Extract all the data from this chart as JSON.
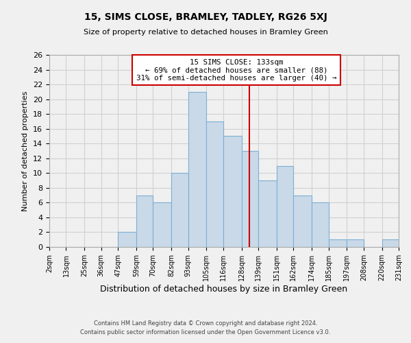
{
  "title": "15, SIMS CLOSE, BRAMLEY, TADLEY, RG26 5XJ",
  "subtitle": "Size of property relative to detached houses in Bramley Green",
  "xlabel": "Distribution of detached houses by size in Bramley Green",
  "ylabel": "Number of detached properties",
  "bin_labels": [
    "2sqm",
    "13sqm",
    "25sqm",
    "36sqm",
    "47sqm",
    "59sqm",
    "70sqm",
    "82sqm",
    "93sqm",
    "105sqm",
    "116sqm",
    "128sqm",
    "139sqm",
    "151sqm",
    "162sqm",
    "174sqm",
    "185sqm",
    "197sqm",
    "208sqm",
    "220sqm",
    "231sqm"
  ],
  "bar_heights": [
    0,
    0,
    0,
    0,
    2,
    7,
    6,
    10,
    21,
    17,
    15,
    13,
    9,
    11,
    7,
    6,
    1,
    1,
    0,
    1
  ],
  "bin_edges": [
    2,
    13,
    25,
    36,
    47,
    59,
    70,
    82,
    93,
    105,
    116,
    128,
    139,
    151,
    162,
    174,
    185,
    197,
    208,
    220,
    231
  ],
  "bar_color": "#c9d9e8",
  "bar_edge_color": "#7bafd4",
  "vline_x": 133,
  "vline_color": "#cc0000",
  "annotation_title": "15 SIMS CLOSE: 133sqm",
  "annotation_line1": "← 69% of detached houses are smaller (88)",
  "annotation_line2": "31% of semi-detached houses are larger (40) →",
  "annotation_box_color": "#ffffff",
  "annotation_box_edge": "#cc0000",
  "ylim": [
    0,
    26
  ],
  "yticks": [
    0,
    2,
    4,
    6,
    8,
    10,
    12,
    14,
    16,
    18,
    20,
    22,
    24,
    26
  ],
  "footer1": "Contains HM Land Registry data © Crown copyright and database right 2024.",
  "footer2": "Contains public sector information licensed under the Open Government Licence v3.0.",
  "grid_color": "#d0d0d0",
  "background_color": "#f0f0f0",
  "plot_bg_color": "#f0f0f0"
}
